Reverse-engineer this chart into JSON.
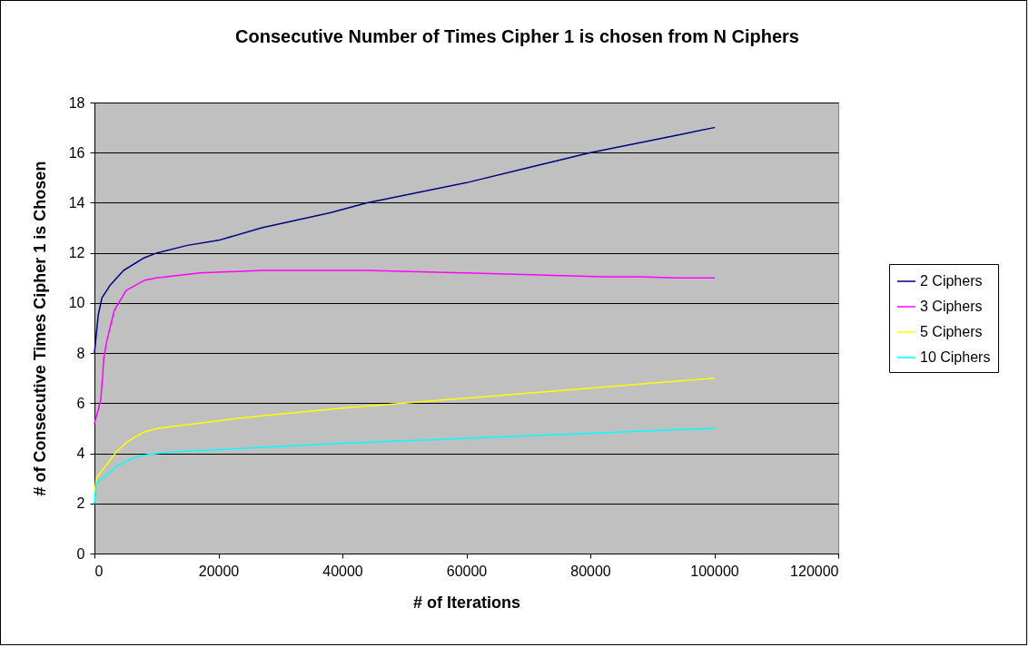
{
  "chart_data": {
    "type": "line",
    "title": "Consecutive Number of Times Cipher 1 is chosen from N Ciphers",
    "xlabel": "# of Iterations",
    "ylabel": "# of Consecutive Times Cipher 1 is Chosen",
    "xlim": [
      0,
      120000
    ],
    "xticks": [
      0,
      20000,
      40000,
      60000,
      80000,
      100000,
      120000
    ],
    "ylim": [
      0,
      18
    ],
    "yticks": [
      0,
      2,
      4,
      6,
      8,
      10,
      12,
      14,
      16,
      18
    ],
    "grid": "y",
    "legend": "right",
    "marker": "none",
    "line_style": "solid",
    "series": [
      {
        "name": "2 Ciphers",
        "color": "#000080",
        "x": [
          0,
          600,
          1200,
          2500,
          4700,
          8000,
          10100,
          15000,
          20000,
          27000,
          38000,
          44000,
          60000,
          70000,
          80000,
          94000,
          100000
        ],
        "values": [
          8,
          9.5,
          10.2,
          10.7,
          11.3,
          11.8,
          12.0,
          12.3,
          12.5,
          13.0,
          13.6,
          14.0,
          14.8,
          15.4,
          16.0,
          16.7,
          17
        ]
      },
      {
        "name": "3 Ciphers",
        "color": "#ff00ff",
        "x": [
          0,
          1000,
          1300,
          1500,
          2000,
          3200,
          5100,
          8000,
          10000,
          17000,
          27000,
          44000,
          60000,
          82000,
          88000,
          94000,
          100000
        ],
        "values": [
          5.2,
          6.1,
          7.0,
          7.8,
          8.5,
          9.7,
          10.5,
          10.9,
          11.0,
          11.2,
          11.3,
          11.3,
          11.2,
          11.05,
          11.05,
          11.0,
          11.0
        ]
      },
      {
        "name": "5 Ciphers",
        "color": "#ffff00",
        "x": [
          0,
          300,
          1800,
          3500,
          5000,
          6200,
          8000,
          10300,
          20000,
          27000,
          40000,
          60000,
          80000,
          100000
        ],
        "values": [
          2.4,
          3.0,
          3.5,
          4.05,
          4.4,
          4.6,
          4.85,
          5.0,
          5.3,
          5.5,
          5.8,
          6.2,
          6.6,
          7.0
        ]
      },
      {
        "name": "10 Ciphers",
        "color": "#00ffff",
        "x": [
          0,
          300,
          1800,
          3700,
          6600,
          8600,
          12000,
          20000,
          40000,
          60000,
          80000,
          100000
        ],
        "values": [
          2.0,
          2.8,
          3.1,
          3.5,
          3.85,
          3.95,
          4.05,
          4.15,
          4.4,
          4.6,
          4.8,
          5.0
        ]
      }
    ]
  }
}
